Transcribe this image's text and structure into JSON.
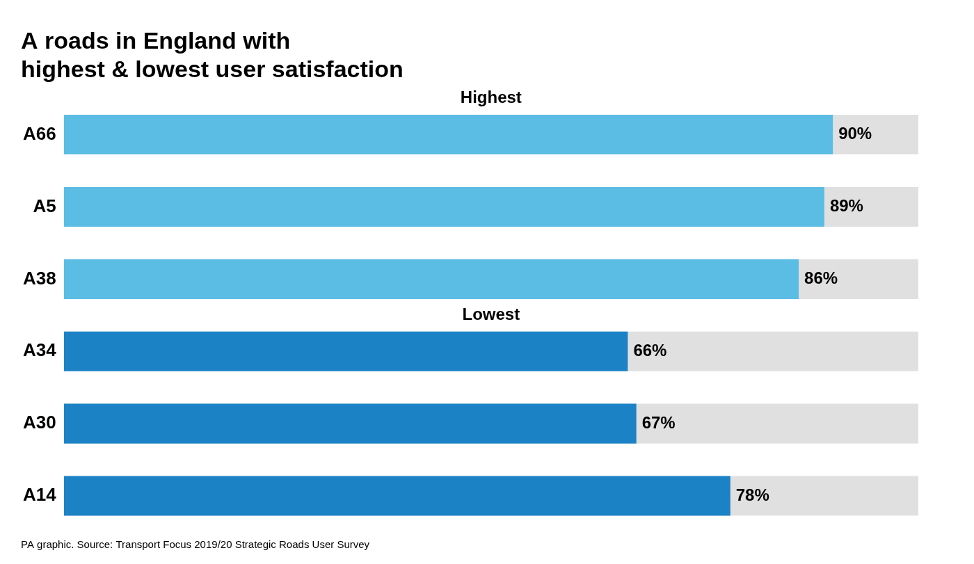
{
  "chart_data": {
    "type": "bar",
    "orientation": "horizontal",
    "title": [
      "A roads in England with",
      "highest & lowest user satisfaction"
    ],
    "subtitle": "PA graphic. Source: Transport Focus 2019/20 Strategic Roads User Survey",
    "categories": [
      "A66",
      "A5",
      "A38",
      "A34",
      "A30",
      "A14"
    ],
    "values": [
      90,
      89,
      86,
      66,
      67,
      78
    ],
    "value_labels": [
      "90%",
      "89%",
      "86%",
      "66%",
      "67%",
      "78%"
    ],
    "colors": [
      "#5bbde4",
      "#5bbde4",
      "#5bbde4",
      "#1b82c5",
      "#1b82c5",
      "#1b82c5"
    ],
    "annotations": [
      {
        "text": "Highest",
        "before": "A66"
      },
      {
        "text": "Lowest",
        "before": "A34"
      }
    ],
    "xlim": [
      0,
      100
    ],
    "data_labels": true,
    "tick_labels": "y",
    "grid": false
  }
}
